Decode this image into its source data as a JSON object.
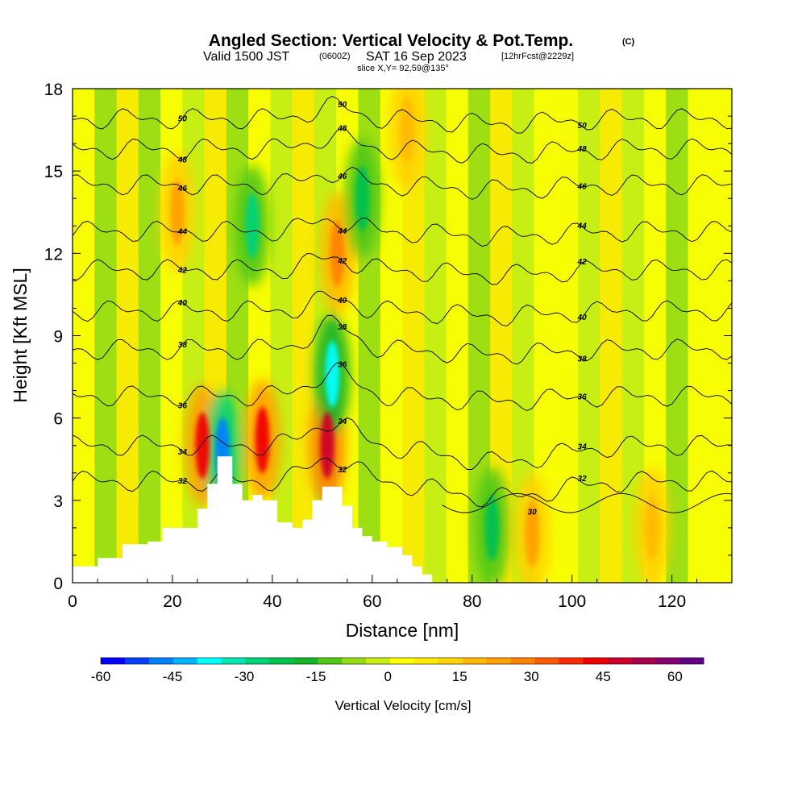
{
  "chart_data": {
    "type": "heatmap",
    "title": "Angled Section: Vertical Velocity & Pot.Temp.",
    "title_units": "(C)",
    "subtitle_prefix": "Valid 1500 JST",
    "subtitle_utc": "(0600Z)",
    "subtitle_date": "SAT 16 Sep 2023",
    "subtitle_fcst": "[12hrFcst@2229z]",
    "slice_label": "slice X,Y= 92,59@135°",
    "xlabel": "Distance [nm]",
    "ylabel": "Height [Kft MSL]",
    "xlim": [
      0,
      132
    ],
    "ylim": [
      0,
      18
    ],
    "x_ticks": [
      "0",
      "20",
      "40",
      "60",
      "80",
      "100",
      "120"
    ],
    "y_ticks": [
      "0",
      "3",
      "6",
      "9",
      "12",
      "15",
      "18"
    ],
    "colorbar": {
      "label": "Vertical Velocity [cm/s]",
      "range": [
        -60,
        66
      ],
      "tick_labels": [
        "-60",
        "-45",
        "-30",
        "-15",
        "0",
        "15",
        "30",
        "45",
        "60"
      ],
      "colors": [
        "#0000ff",
        "#0040ff",
        "#0080ff",
        "#00b4ff",
        "#00ffff",
        "#00e6b4",
        "#00d278",
        "#00c050",
        "#14b428",
        "#50c814",
        "#96dc14",
        "#c8ee14",
        "#ffff00",
        "#ffea00",
        "#ffd200",
        "#ffba00",
        "#ffa000",
        "#ff8200",
        "#ff5a00",
        "#ff2800",
        "#f00000",
        "#cc0028",
        "#a8004c",
        "#860070",
        "#640088"
      ]
    },
    "theta_contours": [
      {
        "value": 30,
        "label": "30"
      },
      {
        "value": 32,
        "label": "32"
      },
      {
        "value": 34,
        "label": "34"
      },
      {
        "value": 36,
        "label": "36"
      },
      {
        "value": 38,
        "label": "38"
      },
      {
        "value": 40,
        "label": "40"
      },
      {
        "value": 42,
        "label": "42"
      },
      {
        "value": 44,
        "label": "44"
      },
      {
        "value": 46,
        "label": "46"
      },
      {
        "value": 48,
        "label": "48"
      },
      {
        "value": 50,
        "label": "50"
      }
    ],
    "theta_levels_height": [
      {
        "value": 32,
        "base": 3.7
      },
      {
        "value": 34,
        "base": 5.0
      },
      {
        "value": 36,
        "base": 6.8
      },
      {
        "value": 38,
        "base": 8.5
      },
      {
        "value": 40,
        "base": 9.9
      },
      {
        "value": 42,
        "base": 11.4
      },
      {
        "value": 44,
        "base": 12.8
      },
      {
        "value": 46,
        "base": 14.5
      },
      {
        "value": 48,
        "base": 15.8
      },
      {
        "value": 50,
        "base": 16.9
      }
    ],
    "terrain": [
      {
        "x": 0,
        "h": 0.6
      },
      {
        "x": 5,
        "h": 0.9
      },
      {
        "x": 10,
        "h": 1.4
      },
      {
        "x": 15,
        "h": 1.5
      },
      {
        "x": 18,
        "h": 2.0
      },
      {
        "x": 22,
        "h": 2.0
      },
      {
        "x": 25,
        "h": 2.7
      },
      {
        "x": 27,
        "h": 3.6
      },
      {
        "x": 29,
        "h": 4.6
      },
      {
        "x": 31,
        "h": 4.6
      },
      {
        "x": 32,
        "h": 3.6
      },
      {
        "x": 34,
        "h": 3.0
      },
      {
        "x": 36,
        "h": 3.2
      },
      {
        "x": 38,
        "h": 3.0
      },
      {
        "x": 41,
        "h": 2.2
      },
      {
        "x": 44,
        "h": 2.0
      },
      {
        "x": 46,
        "h": 2.3
      },
      {
        "x": 48,
        "h": 3.0
      },
      {
        "x": 50,
        "h": 3.5
      },
      {
        "x": 52,
        "h": 3.5
      },
      {
        "x": 54,
        "h": 2.8
      },
      {
        "x": 56,
        "h": 2.0
      },
      {
        "x": 58,
        "h": 1.7
      },
      {
        "x": 60,
        "h": 1.5
      },
      {
        "x": 63,
        "h": 1.3
      },
      {
        "x": 66,
        "h": 1.0
      },
      {
        "x": 68,
        "h": 0.6
      },
      {
        "x": 70,
        "h": 0.3
      },
      {
        "x": 72,
        "h": 0.0
      },
      {
        "x": 132,
        "h": 0.0
      }
    ],
    "updrafts": [
      {
        "x": 26,
        "y": 5.0,
        "w": 45
      },
      {
        "x": 38,
        "y": 5.2,
        "w": 45
      },
      {
        "x": 51,
        "y": 5.0,
        "w": 48
      },
      {
        "x": 53,
        "y": 12.0,
        "w": 30
      },
      {
        "x": 21,
        "y": 13.5,
        "w": 25
      },
      {
        "x": 67,
        "y": 16.5,
        "w": 20
      },
      {
        "x": 116,
        "y": 2.0,
        "w": 20
      },
      {
        "x": 92,
        "y": 1.8,
        "w": 25
      }
    ],
    "downdrafts": [
      {
        "x": 30,
        "y": 4.8,
        "w": -45
      },
      {
        "x": 52,
        "y": 7.6,
        "w": -35
      },
      {
        "x": 36,
        "y": 13.0,
        "w": -25
      },
      {
        "x": 58,
        "y": 14.0,
        "w": -20
      },
      {
        "x": 84,
        "y": 2.0,
        "w": -20
      }
    ]
  }
}
